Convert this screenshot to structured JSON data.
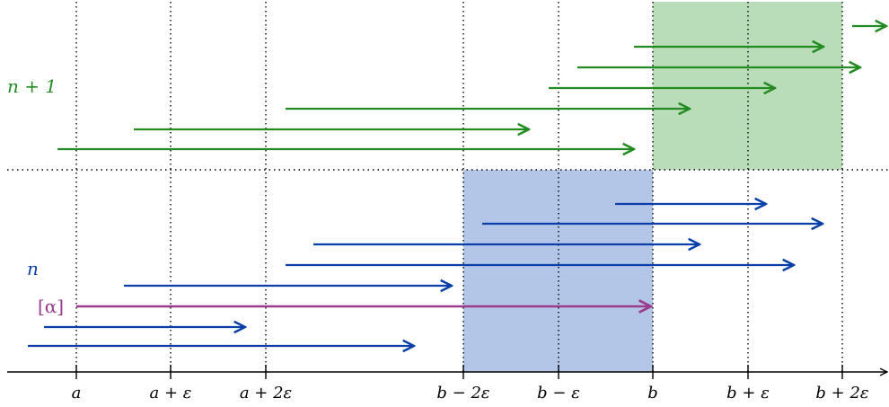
{
  "colors": {
    "green": "#228b22",
    "blue": "#0a3fa8",
    "purple": "#9b3b8c",
    "green_fill": "#b9dcb9",
    "blue_fill": "#b3c6e7",
    "axis": "#000000"
  },
  "labels": {
    "upper_row": "n + 1",
    "lower_row": "n",
    "alpha": "[α]"
  },
  "ticks": [
    {
      "name": "a",
      "label": "a"
    },
    {
      "name": "a-eps",
      "label": "a + ε"
    },
    {
      "name": "a-2eps",
      "label": "a + 2ε"
    },
    {
      "name": "b-2eps",
      "label": "b − 2ε"
    },
    {
      "name": "b-eps",
      "label": "b − ε"
    },
    {
      "name": "b",
      "label": "b"
    },
    {
      "name": "b+eps",
      "label": "b + ε"
    },
    {
      "name": "b+2eps",
      "label": "b + 2ε"
    }
  ],
  "green_arrows": [
    {
      "from": "a - 0.2ε",
      "to": "b - 0.2ε"
    },
    {
      "from": "a + 0.6ε",
      "to": "b - 0.35ε"
    },
    {
      "from": "a + 2.2ε",
      "to": "b + 0.4ε"
    },
    {
      "from": "b - 1.1ε",
      "to": "b + 1.3ε"
    },
    {
      "from": "b - 0.8ε",
      "to": "b + 2.2ε"
    },
    {
      "from": "b - 0.2ε",
      "to": "b + 1.8ε"
    },
    {
      "from": "b + 2.1ε",
      "to": "beyond"
    }
  ],
  "blue_arrows": [
    {
      "from": "a - 0.5ε",
      "to": "a + 3.6ε"
    },
    {
      "from": "a - 0.3ε",
      "to": "a + 1.8ε"
    },
    {
      "from": "a + 0.5ε",
      "to": "b - 2.1ε"
    },
    {
      "from": "a + 2.2ε",
      "to": "b + 1.5ε"
    },
    {
      "from": "a + 2.5ε",
      "to": "b + 0.5ε"
    },
    {
      "from": "b - 1.8ε",
      "to": "b + 1.8ε"
    },
    {
      "from": "b - 0.4ε",
      "to": "b + 1.2ε"
    }
  ],
  "alpha_arrow": {
    "from": "a",
    "to": "b"
  }
}
